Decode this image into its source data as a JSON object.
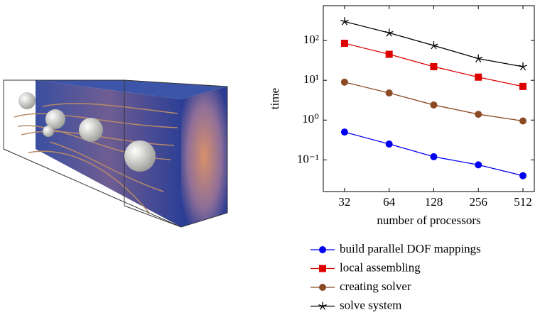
{
  "chart_data": {
    "type": "line",
    "x_label": "number of processors",
    "y_label": "time",
    "x": [
      32,
      64,
      128,
      256,
      512
    ],
    "x_scale": "log",
    "y_scale": "log",
    "xlim": [
      23,
      611
    ],
    "xticks": [
      32,
      64,
      128,
      256,
      512
    ],
    "ylim": [
      0.016,
      750
    ],
    "yticks": [
      {
        "value": 0.1,
        "label": "10⁻¹"
      },
      {
        "value": 1,
        "label": "10⁰"
      },
      {
        "value": 10,
        "label": "10¹"
      },
      {
        "value": 100,
        "label": "10²"
      }
    ],
    "legend": "below",
    "series": [
      {
        "name": "build parallel DOF mappings",
        "color": "#0000ee",
        "marker": "circle",
        "values": [
          0.5,
          0.25,
          0.12,
          0.075,
          0.04
        ]
      },
      {
        "name": "local assembling",
        "color": "#dd0000",
        "marker": "square",
        "values": [
          85,
          45,
          22,
          12,
          7
        ]
      },
      {
        "name": "creating solver",
        "color": "#8b4a22",
        "marker": "circle",
        "values": [
          9,
          4.8,
          2.4,
          1.4,
          0.95
        ]
      },
      {
        "name": "solve system",
        "color": "#000000",
        "marker": "star",
        "values": [
          300,
          155,
          75,
          35,
          22
        ]
      }
    ]
  }
}
